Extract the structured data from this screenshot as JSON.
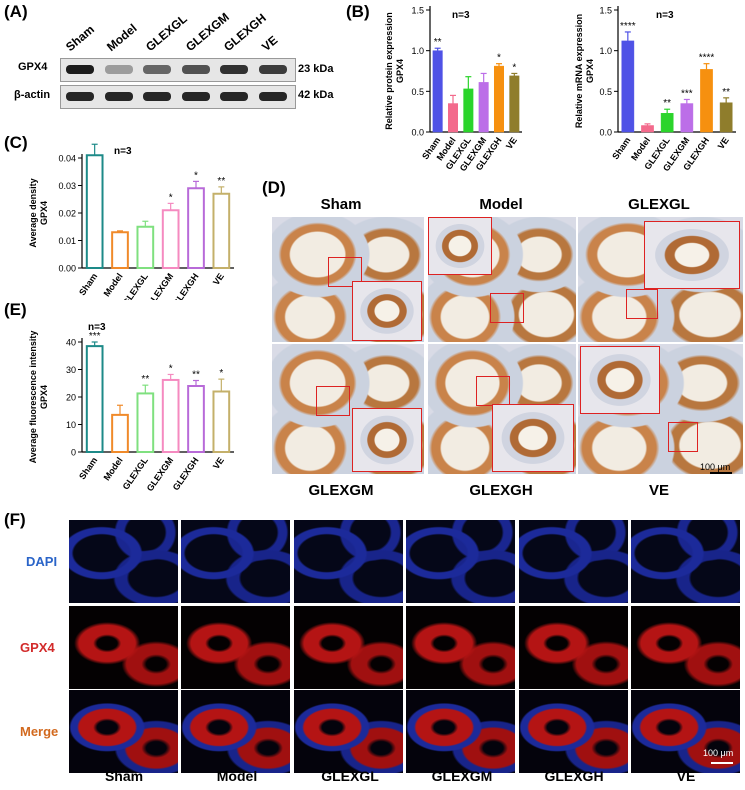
{
  "panels": {
    "A": "(A)",
    "B": "(B)",
    "C": "(C)",
    "D": "(D)",
    "E": "(E)",
    "F": "(F)"
  },
  "blot": {
    "lanes": [
      "Sham",
      "Model",
      "GLEXGL",
      "GLEXGM",
      "GLEXGH",
      "VE"
    ],
    "rows": [
      {
        "name": "GPX4",
        "kda": "23 kDa",
        "intensity": [
          0.95,
          0.35,
          0.6,
          0.7,
          0.85,
          0.8
        ]
      },
      {
        "name": "β-actin",
        "kda": "42 kDa",
        "intensity": [
          0.9,
          0.9,
          0.9,
          0.9,
          0.9,
          0.9
        ]
      }
    ]
  },
  "colors": {
    "Sham": "#4f52e6",
    "Model": "#f36a8c",
    "GLEXGL": "#2bd42b",
    "GLEXGM": "#bc6ee8",
    "GLEXGH": "#f6900f",
    "VE": "#8f7d2c",
    "C_Sham": "#1d8a88",
    "C_Model": "#f08a2a",
    "C_GLEXGL": "#7fe07f",
    "C_GLEXGM": "#f58ac0",
    "C_GLEXGH": "#b86ad8",
    "C_VE": "#c4b06a"
  },
  "chart_data": [
    {
      "id": "B-left",
      "type": "bar",
      "n_label": "n=3",
      "categories": [
        "Sham",
        "Model",
        "GLEXGL",
        "GLEXGM",
        "GLEXGH",
        "VE"
      ],
      "values": [
        1.0,
        0.35,
        0.53,
        0.61,
        0.81,
        0.69
      ],
      "errors": [
        0.03,
        0.1,
        0.15,
        0.11,
        0.03,
        0.03
      ],
      "sig": [
        "**",
        "",
        "",
        "",
        "*",
        "*"
      ],
      "ylabel": "Relative protein expression\nGPX4",
      "ylim": [
        0,
        1.5
      ],
      "yticks": [
        "0.0",
        "0.5",
        "1.0",
        "1.5"
      ]
    },
    {
      "id": "B-right",
      "type": "bar",
      "n_label": "n=3",
      "categories": [
        "Sham",
        "Model",
        "GLEXGL",
        "GLEXGM",
        "GLEXGH",
        "VE"
      ],
      "values": [
        1.12,
        0.08,
        0.23,
        0.35,
        0.77,
        0.36
      ],
      "errors": [
        0.11,
        0.02,
        0.05,
        0.05,
        0.07,
        0.06
      ],
      "sig": [
        "****",
        "",
        "**",
        "***",
        "****",
        "**"
      ],
      "ylabel": "Relative mRNA expression\nGPX4",
      "ylim": [
        0,
        1.5
      ],
      "yticks": [
        "0.0",
        "0.5",
        "1.0",
        "1.5"
      ]
    },
    {
      "id": "C",
      "type": "bar",
      "n_label": "n=3",
      "categories": [
        "Sham",
        "Model",
        "GLEXGL",
        "GLEXGM",
        "GLEXGH",
        "VE"
      ],
      "values": [
        0.041,
        0.013,
        0.015,
        0.021,
        0.029,
        0.027
      ],
      "errors": [
        0.004,
        0.0005,
        0.002,
        0.0025,
        0.0025,
        0.0025
      ],
      "sig": [
        "**",
        "",
        "",
        "*",
        "*",
        "**"
      ],
      "ylabel": "Average density\nGPX4",
      "ylim": [
        0,
        0.04
      ],
      "yticks": [
        "0.00",
        "0.01",
        "0.02",
        "0.03",
        "0.04"
      ]
    },
    {
      "id": "E",
      "type": "bar",
      "n_label": "n=3",
      "categories": [
        "Sham",
        "Model",
        "GLEXGL",
        "GLEXGM",
        "GLEXGH",
        "VE"
      ],
      "values": [
        38.5,
        13.5,
        21.3,
        26.2,
        24.0,
        22.0
      ],
      "errors": [
        1.5,
        3.5,
        3.0,
        2.0,
        2.0,
        4.5
      ],
      "sig": [
        "***",
        "",
        "**",
        "*",
        "**",
        "*"
      ],
      "ylabel": "Average fluorescence intensity\nGPX4",
      "ylim": [
        0,
        40
      ],
      "yticks": [
        "0",
        "10",
        "20",
        "30",
        "40"
      ]
    }
  ],
  "ihc": {
    "top": [
      "Sham",
      "Model",
      "GLEXGL"
    ],
    "bottom": [
      "GLEXGM",
      "GLEXGH",
      "VE"
    ],
    "scale": "100 μm"
  },
  "if": {
    "rows": [
      "DAPI",
      "GPX4",
      "Merge"
    ],
    "row_colors": [
      "#2a64c8",
      "#d22a2a",
      "#d2691e"
    ],
    "cols": [
      "Sham",
      "Model",
      "GLEXGL",
      "GLEXGM",
      "GLEXGH",
      "VE"
    ],
    "scale": "100 μm"
  }
}
